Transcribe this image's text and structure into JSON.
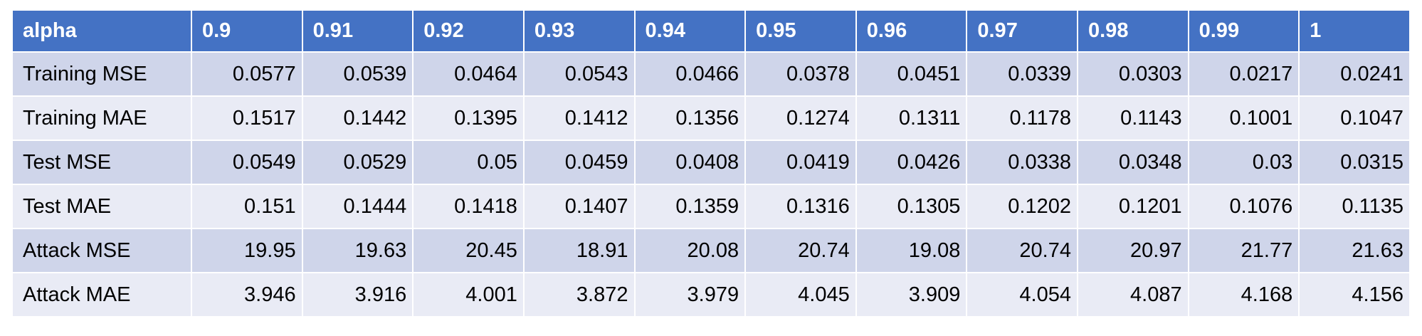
{
  "table": {
    "header": [
      "alpha",
      "0.9",
      "0.91",
      "0.92",
      "0.93",
      "0.94",
      "0.95",
      "0.96",
      "0.97",
      "0.98",
      "0.99",
      "1"
    ],
    "rows": [
      [
        "Training MSE",
        "0.0577",
        "0.0539",
        "0.0464",
        "0.0543",
        "0.0466",
        "0.0378",
        "0.0451",
        "0.0339",
        "0.0303",
        "0.0217",
        "0.0241"
      ],
      [
        "Training MAE",
        "0.1517",
        "0.1442",
        "0.1395",
        "0.1412",
        "0.1356",
        "0.1274",
        "0.1311",
        "0.1178",
        "0.1143",
        "0.1001",
        "0.1047"
      ],
      [
        "Test MSE",
        "0.0549",
        "0.0529",
        "0.05",
        "0.0459",
        "0.0408",
        "0.0419",
        "0.0426",
        "0.0338",
        "0.0348",
        "0.03",
        "0.0315"
      ],
      [
        "Test MAE",
        "0.151",
        "0.1444",
        "0.1418",
        "0.1407",
        "0.1359",
        "0.1316",
        "0.1305",
        "0.1202",
        "0.1201",
        "0.1076",
        "0.1135"
      ],
      [
        "Attack MSE",
        "19.95",
        "19.63",
        "20.45",
        "18.91",
        "20.08",
        "20.74",
        "19.08",
        "20.74",
        "20.97",
        "21.77",
        "21.63"
      ],
      [
        "Attack MAE",
        "3.946",
        "3.916",
        "4.001",
        "3.872",
        "3.979",
        "4.045",
        "3.909",
        "4.054",
        "4.087",
        "4.168",
        "4.156"
      ]
    ]
  }
}
